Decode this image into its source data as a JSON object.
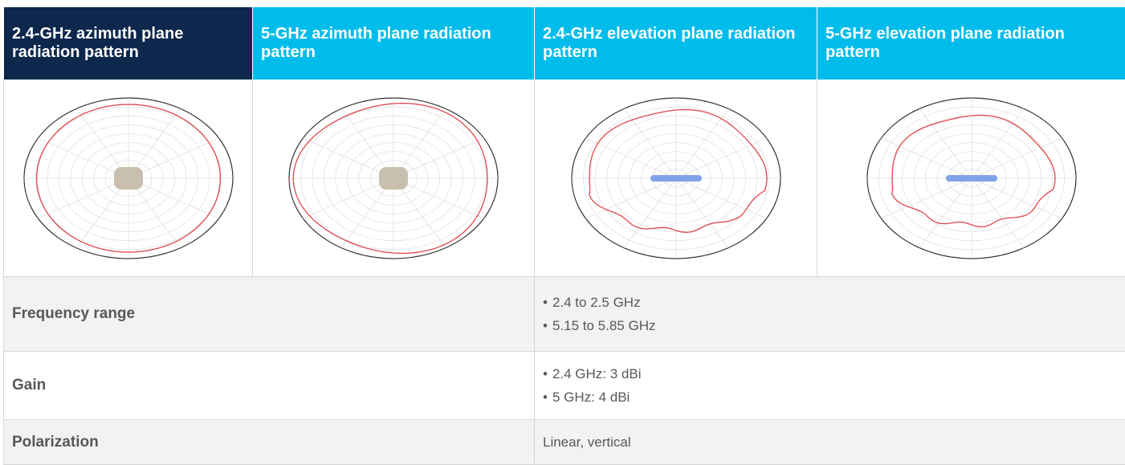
{
  "header": {
    "columns": [
      "2.4-GHz azimuth plane radiation pattern",
      "5-GHz azimuth plane radiation pattern",
      "2.4-GHz elevation plane radiation pattern",
      "5-GHz elevation plane radiation pattern"
    ]
  },
  "table": {
    "rows": [
      {
        "label": "Frequency range",
        "items": [
          "2.4 to 2.5 GHz",
          "5.15 to 5.85 GHz"
        ]
      },
      {
        "label": "Gain",
        "items": [
          "2.4 GHz: 3 dBi",
          "5 GHz: 4 dBi"
        ]
      },
      {
        "label": "Polarization",
        "text": "Linear, vertical"
      }
    ]
  }
}
